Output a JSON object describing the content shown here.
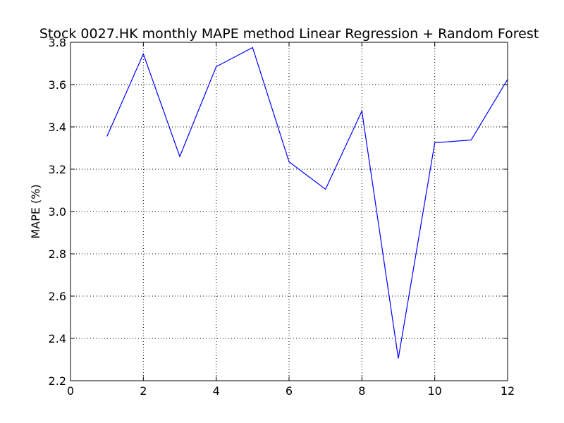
{
  "chart_data": {
    "type": "line",
    "title": "Stock 0027.HK monthly MAPE method Linear Regression + Random Forest",
    "xlabel": "",
    "ylabel": "MAPE (%)",
    "xlim": [
      0,
      12
    ],
    "ylim": [
      2.2,
      3.8
    ],
    "xticks": [
      0,
      2,
      4,
      6,
      8,
      10,
      12
    ],
    "yticks": [
      2.2,
      2.4,
      2.6,
      2.8,
      3.0,
      3.2,
      3.4,
      3.6,
      3.8
    ],
    "xtick_labels": [
      "0",
      "2",
      "4",
      "6",
      "8",
      "10",
      "12"
    ],
    "ytick_labels": [
      "2.2",
      "2.4",
      "2.6",
      "2.8",
      "3.0",
      "3.2",
      "3.4",
      "3.6",
      "3.8"
    ],
    "grid": true,
    "series": [
      {
        "color": "#0000ff",
        "x": [
          1,
          2,
          3,
          4,
          5,
          6,
          7,
          8,
          9,
          10,
          11,
          12
        ],
        "values": [
          3.355,
          3.745,
          3.26,
          3.685,
          3.775,
          3.235,
          3.105,
          3.475,
          2.305,
          3.325,
          3.338,
          3.625
        ]
      }
    ]
  }
}
